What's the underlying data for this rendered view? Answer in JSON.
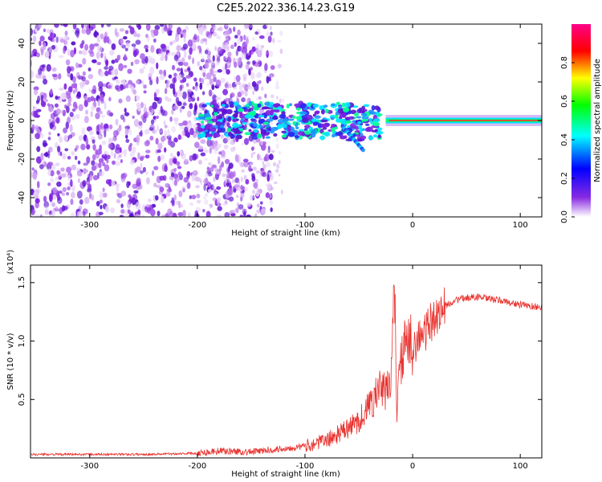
{
  "title": "C2E5.2022.336.14.23.G19",
  "chart_data": [
    {
      "type": "heatmap",
      "xlabel": "Height of straight line (km)",
      "ylabel": "Frequency (Hz)",
      "xlim": [
        -355,
        120
      ],
      "ylim": [
        -50,
        50
      ],
      "xticks": [
        -300,
        -200,
        -100,
        0,
        100
      ],
      "yticks": [
        -40,
        -20,
        0,
        20,
        40
      ],
      "colorbar": {
        "label": "Normalized spectral amplitude",
        "range": [
          0,
          1
        ],
        "ticks": [
          "0.0",
          "0.2",
          "0.4",
          "0.6",
          "0.8"
        ],
        "colors": [
          "#ffffff",
          "#8a2be2",
          "#0000ff",
          "#00ffff",
          "#00ff00",
          "#ffff00",
          "#ff0000",
          "#ff00aa"
        ]
      },
      "features": {
        "signal_ridge": {
          "frequency": 0,
          "strong_from_height": -25,
          "strong_to_height": 120
        },
        "noise_band": {
          "from_height": -355,
          "to_height": -130
        },
        "descending_branch": {
          "from": [
            -65,
            -3
          ],
          "to": [
            -45,
            -16
          ]
        }
      }
    },
    {
      "type": "line",
      "xlabel": "Height of straight line (km)",
      "ylabel": "SNR (10 * v/v)",
      "yscale_label": "(x10⁴)",
      "xlim": [
        -355,
        120
      ],
      "ylim": [
        0,
        1.65
      ],
      "xticks": [
        -300,
        -200,
        -100,
        0,
        100
      ],
      "yticks": [
        "0.5",
        "1.0",
        "1.5"
      ],
      "color": "#e8322e",
      "series": [
        {
          "x": [
            -355,
            -300,
            -250,
            -200,
            -180,
            -150,
            -120,
            -100,
            -80,
            -60,
            -50,
            -40,
            -30,
            -25,
            -20,
            -17,
            -15,
            -10,
            -5,
            0,
            10,
            20,
            30,
            40,
            50,
            60,
            70,
            80,
            90,
            100,
            110,
            120
          ],
          "y": [
            0.03,
            0.03,
            0.03,
            0.04,
            0.06,
            0.05,
            0.08,
            0.1,
            0.15,
            0.25,
            0.32,
            0.45,
            0.6,
            0.55,
            0.7,
            1.6,
            0.4,
            0.9,
            0.95,
            0.98,
            1.05,
            1.2,
            1.3,
            1.35,
            1.37,
            1.38,
            1.36,
            1.35,
            1.33,
            1.31,
            1.3,
            1.29
          ]
        }
      ]
    }
  ]
}
